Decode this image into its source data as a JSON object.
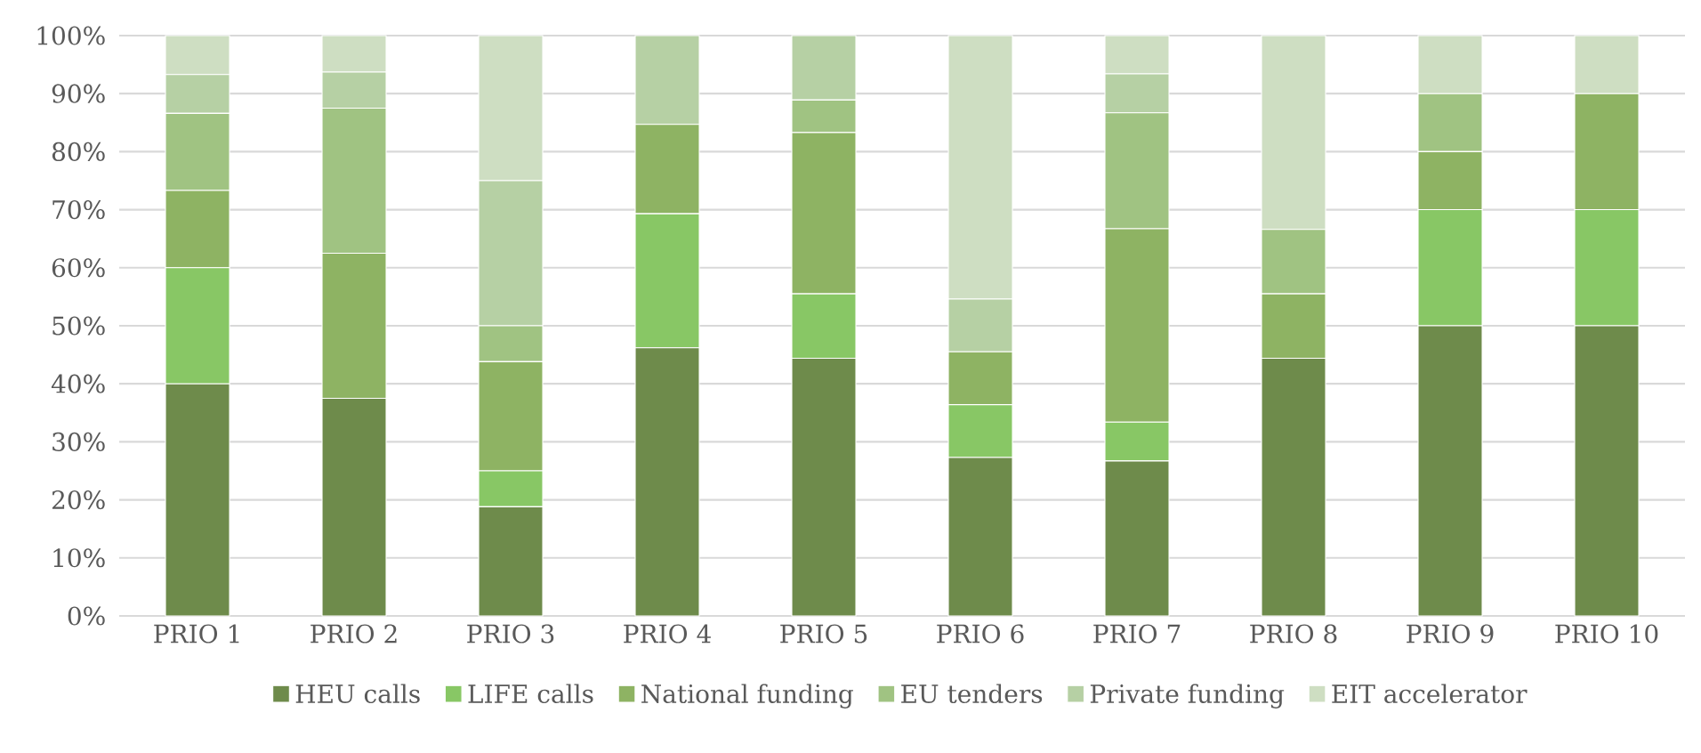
{
  "chart_data": {
    "type": "bar",
    "stacked": true,
    "categories": [
      "PRIO 1",
      "PRIO 2",
      "PRIO 3",
      "PRIO 4",
      "PRIO 5",
      "PRIO 6",
      "PRIO 7",
      "PRIO 8",
      "PRIO 9",
      "PRIO 10"
    ],
    "series": [
      {
        "name": "HEU calls",
        "color": "#6e8b4b",
        "values": [
          40,
          37.5,
          18.8,
          46.2,
          44.4,
          27.3,
          26.7,
          44.4,
          50,
          50
        ]
      },
      {
        "name": "LIFE calls",
        "color": "#88c765",
        "values": [
          20,
          0,
          6.2,
          23.1,
          11.1,
          9.1,
          6.7,
          0,
          20,
          20
        ]
      },
      {
        "name": "National funding",
        "color": "#8eb363",
        "values": [
          13.3,
          25,
          18.8,
          15.4,
          27.8,
          9.1,
          33.3,
          11.1,
          10,
          20
        ]
      },
      {
        "name": "EU tenders",
        "color": "#a0c382",
        "values": [
          13.3,
          25,
          6.2,
          0,
          5.6,
          0,
          20,
          11.1,
          10,
          0
        ]
      },
      {
        "name": "Private funding",
        "color": "#b6d0a4",
        "values": [
          6.7,
          6.2,
          25,
          15.3,
          11.1,
          9.1,
          6.7,
          0,
          0,
          0
        ]
      },
      {
        "name": "EIT accelerator",
        "color": "#cedec2",
        "values": [
          6.7,
          6.3,
          25,
          0,
          0,
          45.4,
          6.6,
          33.4,
          10,
          10
        ]
      }
    ],
    "ylim": [
      0,
      100
    ],
    "yticks": [
      {
        "value": 0,
        "label": "0%"
      },
      {
        "value": 10,
        "label": "10%"
      },
      {
        "value": 20,
        "label": "20%"
      },
      {
        "value": 30,
        "label": "30%"
      },
      {
        "value": 40,
        "label": "40%"
      },
      {
        "value": 50,
        "label": "50%"
      },
      {
        "value": 60,
        "label": "60%"
      },
      {
        "value": 70,
        "label": "70%"
      },
      {
        "value": 80,
        "label": "80%"
      },
      {
        "value": 90,
        "label": "90%"
      },
      {
        "value": 100,
        "label": "100%"
      }
    ],
    "grid": "y",
    "legend": "bottom"
  }
}
